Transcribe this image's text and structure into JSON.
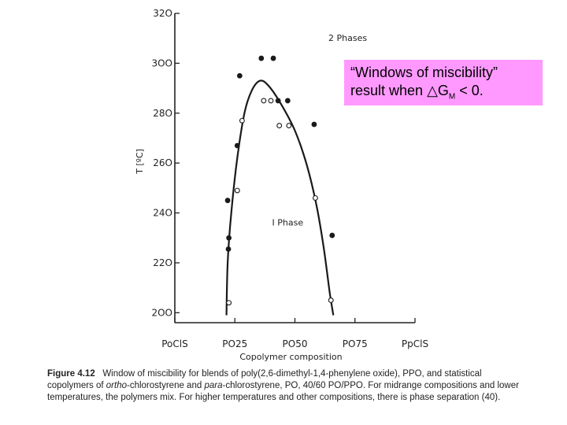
{
  "chart_data": {
    "type": "scatter",
    "title": "",
    "xlabel": "Copolymer composition",
    "ylabel": "T [ºC]",
    "x_ticks": [
      {
        "value": 0,
        "label": "PoClS"
      },
      {
        "value": 25,
        "label": "PO25"
      },
      {
        "value": 50,
        "label": "PO50"
      },
      {
        "value": 75,
        "label": "PO75"
      },
      {
        "value": 100,
        "label": "PpClS"
      }
    ],
    "y_ticks": [
      {
        "value": 200,
        "label": "2OO"
      },
      {
        "value": 220,
        "label": "22O"
      },
      {
        "value": 240,
        "label": "24O"
      },
      {
        "value": 260,
        "label": "26O"
      },
      {
        "value": 280,
        "label": "28O"
      },
      {
        "value": 300,
        "label": "3OO"
      },
      {
        "value": 320,
        "label": "32O"
      }
    ],
    "xlim": [
      0,
      100
    ],
    "ylim": [
      196,
      320
    ],
    "grid": false,
    "region_labels": [
      {
        "text": "2 Phases",
        "x": 72,
        "y": 309
      },
      {
        "text": "I Phase",
        "x": 47,
        "y": 235
      }
    ],
    "series": [
      {
        "marker": "filled",
        "points": [
          {
            "x": 36,
            "y": 302
          },
          {
            "x": 41,
            "y": 302
          },
          {
            "x": 27,
            "y": 295
          },
          {
            "x": 43,
            "y": 285
          },
          {
            "x": 47,
            "y": 285
          },
          {
            "x": 58,
            "y": 275.5
          },
          {
            "x": 26,
            "y": 267
          },
          {
            "x": 22,
            "y": 245
          },
          {
            "x": 22.5,
            "y": 230
          },
          {
            "x": 22.3,
            "y": 225.5
          },
          {
            "x": 65.5,
            "y": 231
          }
        ]
      },
      {
        "marker": "open",
        "points": [
          {
            "x": 37,
            "y": 285
          },
          {
            "x": 40,
            "y": 285
          },
          {
            "x": 28,
            "y": 277
          },
          {
            "x": 43.5,
            "y": 275
          },
          {
            "x": 47.5,
            "y": 275
          },
          {
            "x": 26,
            "y": 249
          },
          {
            "x": 58.5,
            "y": 246
          },
          {
            "x": 22.5,
            "y": 204
          },
          {
            "x": 65,
            "y": 205
          }
        ]
      }
    ],
    "boundary_curve": [
      {
        "x": 21.5,
        "y": 199
      },
      {
        "x": 22,
        "y": 220
      },
      {
        "x": 23.5,
        "y": 240
      },
      {
        "x": 26,
        "y": 262
      },
      {
        "x": 29,
        "y": 280
      },
      {
        "x": 32,
        "y": 289
      },
      {
        "x": 35.5,
        "y": 293
      },
      {
        "x": 39,
        "y": 291
      },
      {
        "x": 44,
        "y": 284
      },
      {
        "x": 50,
        "y": 273
      },
      {
        "x": 55,
        "y": 259
      },
      {
        "x": 59,
        "y": 243
      },
      {
        "x": 62,
        "y": 226
      },
      {
        "x": 64.5,
        "y": 208
      },
      {
        "x": 66,
        "y": 199
      }
    ]
  },
  "callout": {
    "line1": "“Windows of miscibility”",
    "line2_prefix": "result when ",
    "delta": "△",
    "g": "G",
    "sub": "M",
    "suffix": " < 0."
  },
  "caption": {
    "label": "Figure 4.12",
    "text_1": "Window of miscibility for blends of poly(2,6-dimethyl-1,4-phenylene oxide), PPO, and statistical copolymers of ",
    "ortho": "ortho",
    "text_2": "-chlorostyrene and ",
    "para": "para",
    "text_3": "-chlorostyrene, PO, 40/60 PO/PPO. For midrange compositions and lower temperatures, the polymers mix. For higher temperatures and other compositions, there is phase separation (40)."
  }
}
